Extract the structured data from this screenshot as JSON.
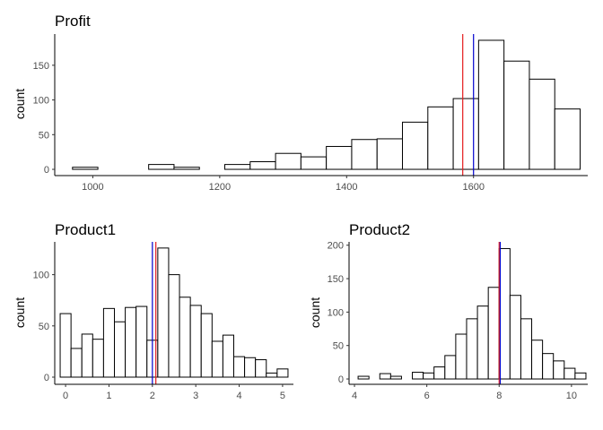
{
  "chart_data": [
    {
      "type": "bar",
      "title": "Profit",
      "xlabel": "",
      "ylabel": "count",
      "xlim": [
        940,
        1780
      ],
      "ylim": [
        -9,
        195
      ],
      "xticks": [
        1000,
        1200,
        1400,
        1600
      ],
      "yticks": [
        0,
        50,
        100,
        150
      ],
      "bins": [
        {
          "x0": 968,
          "x1": 1008,
          "count": 3
        },
        {
          "x0": 1008,
          "x1": 1048,
          "count": 0
        },
        {
          "x0": 1048,
          "x1": 1088,
          "count": 0
        },
        {
          "x0": 1088,
          "x1": 1128,
          "count": 7
        },
        {
          "x0": 1128,
          "x1": 1168,
          "count": 3
        },
        {
          "x0": 1168,
          "x1": 1208,
          "count": 0
        },
        {
          "x0": 1208,
          "x1": 1248,
          "count": 7
        },
        {
          "x0": 1248,
          "x1": 1288,
          "count": 11
        },
        {
          "x0": 1288,
          "x1": 1328,
          "count": 23
        },
        {
          "x0": 1328,
          "x1": 1368,
          "count": 18
        },
        {
          "x0": 1368,
          "x1": 1408,
          "count": 33
        },
        {
          "x0": 1408,
          "x1": 1448,
          "count": 43
        },
        {
          "x0": 1448,
          "x1": 1488,
          "count": 44
        },
        {
          "x0": 1488,
          "x1": 1528,
          "count": 68
        },
        {
          "x0": 1528,
          "x1": 1568,
          "count": 90
        },
        {
          "x0": 1568,
          "x1": 1608,
          "count": 102
        },
        {
          "x0": 1608,
          "x1": 1648,
          "count": 186
        },
        {
          "x0": 1648,
          "x1": 1688,
          "count": 156
        },
        {
          "x0": 1688,
          "x1": 1728,
          "count": 130
        },
        {
          "x0": 1728,
          "x1": 1768,
          "count": 87
        }
      ],
      "vlines": [
        {
          "value": 1583,
          "color": "#e41a1c"
        },
        {
          "value": 1600,
          "color": "#0000cd"
        }
      ]
    },
    {
      "type": "bar",
      "title": "Product1",
      "xlabel": "",
      "ylabel": "count",
      "xlim": [
        -0.25,
        5.25
      ],
      "ylim": [
        -7,
        132
      ],
      "xticks": [
        0,
        1,
        2,
        3,
        4,
        5
      ],
      "yticks": [
        0,
        50,
        100
      ],
      "bins": [
        {
          "x0": -0.125,
          "x1": 0.125,
          "count": 62
        },
        {
          "x0": 0.125,
          "x1": 0.375,
          "count": 28
        },
        {
          "x0": 0.375,
          "x1": 0.625,
          "count": 42
        },
        {
          "x0": 0.625,
          "x1": 0.875,
          "count": 37
        },
        {
          "x0": 0.875,
          "x1": 1.125,
          "count": 67
        },
        {
          "x0": 1.125,
          "x1": 1.375,
          "count": 54
        },
        {
          "x0": 1.375,
          "x1": 1.625,
          "count": 68
        },
        {
          "x0": 1.625,
          "x1": 1.875,
          "count": 69
        },
        {
          "x0": 1.875,
          "x1": 2.125,
          "count": 36
        },
        {
          "x0": 2.125,
          "x1": 2.375,
          "count": 126
        },
        {
          "x0": 2.375,
          "x1": 2.625,
          "count": 100
        },
        {
          "x0": 2.625,
          "x1": 2.875,
          "count": 78
        },
        {
          "x0": 2.875,
          "x1": 3.125,
          "count": 70
        },
        {
          "x0": 3.125,
          "x1": 3.375,
          "count": 62
        },
        {
          "x0": 3.375,
          "x1": 3.625,
          "count": 35
        },
        {
          "x0": 3.625,
          "x1": 3.875,
          "count": 41
        },
        {
          "x0": 3.875,
          "x1": 4.125,
          "count": 20
        },
        {
          "x0": 4.125,
          "x1": 4.375,
          "count": 19
        },
        {
          "x0": 4.375,
          "x1": 4.625,
          "count": 17
        },
        {
          "x0": 4.625,
          "x1": 4.875,
          "count": 4
        },
        {
          "x0": 4.875,
          "x1": 5.125,
          "count": 8
        }
      ],
      "vlines": [
        {
          "value": 2.0,
          "color": "#0000cd"
        },
        {
          "value": 2.08,
          "color": "#e41a1c"
        }
      ]
    },
    {
      "type": "bar",
      "title": "Product2",
      "xlabel": "",
      "ylabel": "count",
      "xlim": [
        3.85,
        10.45
      ],
      "ylim": [
        -8,
        205
      ],
      "xticks": [
        4,
        6,
        8,
        10
      ],
      "yticks": [
        0,
        50,
        100,
        150,
        200
      ],
      "bins": [
        {
          "x0": 4.1,
          "x1": 4.4,
          "count": 4
        },
        {
          "x0": 4.4,
          "x1": 4.7,
          "count": 0
        },
        {
          "x0": 4.7,
          "x1": 5.0,
          "count": 8
        },
        {
          "x0": 5.0,
          "x1": 5.3,
          "count": 4
        },
        {
          "x0": 5.3,
          "x1": 5.6,
          "count": 0
        },
        {
          "x0": 5.6,
          "x1": 5.9,
          "count": 10
        },
        {
          "x0": 5.9,
          "x1": 6.2,
          "count": 9
        },
        {
          "x0": 6.2,
          "x1": 6.5,
          "count": 18
        },
        {
          "x0": 6.5,
          "x1": 6.8,
          "count": 35
        },
        {
          "x0": 6.8,
          "x1": 7.1,
          "count": 67
        },
        {
          "x0": 7.1,
          "x1": 7.4,
          "count": 90
        },
        {
          "x0": 7.4,
          "x1": 7.7,
          "count": 109
        },
        {
          "x0": 7.7,
          "x1": 8.0,
          "count": 137
        },
        {
          "x0": 8.0,
          "x1": 8.3,
          "count": 195
        },
        {
          "x0": 8.3,
          "x1": 8.6,
          "count": 125
        },
        {
          "x0": 8.6,
          "x1": 8.9,
          "count": 90
        },
        {
          "x0": 8.9,
          "x1": 9.2,
          "count": 58
        },
        {
          "x0": 9.2,
          "x1": 9.5,
          "count": 38
        },
        {
          "x0": 9.5,
          "x1": 9.8,
          "count": 27
        },
        {
          "x0": 9.8,
          "x1": 10.1,
          "count": 16
        },
        {
          "x0": 10.1,
          "x1": 10.4,
          "count": 9
        }
      ],
      "vlines": [
        {
          "value": 8.0,
          "color": "#e41a1c"
        },
        {
          "value": 8.03,
          "color": "#0000cd"
        }
      ]
    }
  ]
}
